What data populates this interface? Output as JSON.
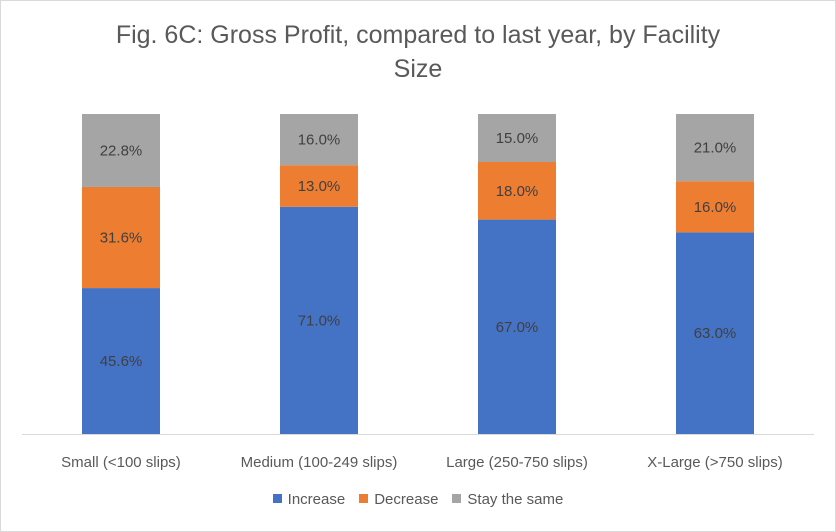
{
  "chart_data": {
    "type": "bar",
    "stacked": true,
    "title_lines": [
      "Fig. 6C: Gross Profit, compared to last year, by Facility",
      "Size"
    ],
    "categories": [
      "Small (<100 slips)",
      "Medium (100-249 slips)",
      "Large (250-750 slips)",
      "X-Large (>750 slips)"
    ],
    "series": [
      {
        "name": "Increase",
        "color": "#4472C4",
        "values": [
          45.6,
          71.0,
          67.0,
          63.0
        ],
        "labels": [
          "45.6%",
          "71.0%",
          "67.0%",
          "63.0%"
        ]
      },
      {
        "name": "Decrease",
        "color": "#ED7D31",
        "values": [
          31.6,
          13.0,
          18.0,
          16.0
        ],
        "labels": [
          "31.6%",
          "13.0%",
          "18.0%",
          "16.0%"
        ]
      },
      {
        "name": "Stay the same",
        "color": "#A5A5A5",
        "values": [
          22.8,
          16.0,
          15.0,
          21.0
        ],
        "labels": [
          "22.8%",
          "16.0%",
          "15.0%",
          "21.0%"
        ]
      }
    ],
    "ylim": [
      0,
      100
    ],
    "grid": false,
    "legend_position": "bottom"
  }
}
